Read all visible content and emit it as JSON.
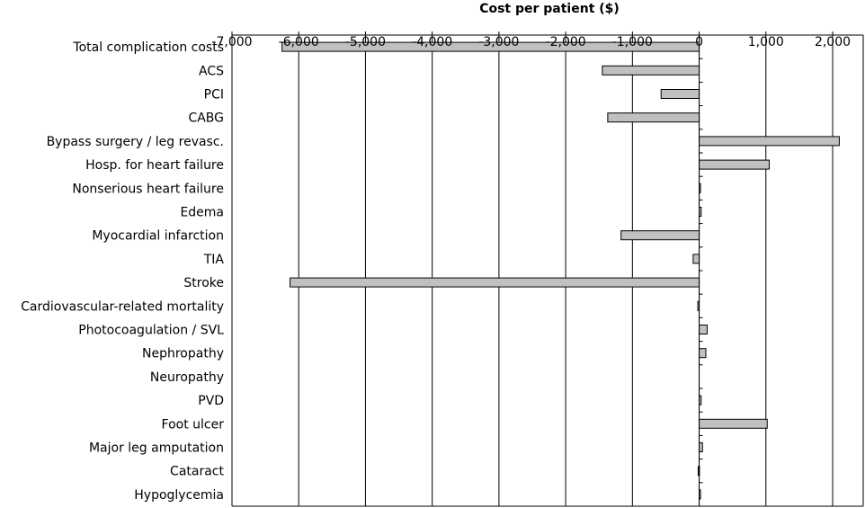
{
  "chart_data": {
    "type": "bar",
    "orientation": "horizontal",
    "title": "",
    "xlabel": "Cost per patient ($)",
    "ylabel": "",
    "xlim": [
      -7000,
      2500
    ],
    "x_ticks": [
      -7000,
      -6000,
      -5000,
      -4000,
      -3000,
      -2000,
      -1000,
      0,
      1000,
      2000
    ],
    "x_tick_labels": [
      "-7,000",
      "-6,000",
      "-5,000",
      "-4,000",
      "-3,000",
      "-2,000",
      "-1,000",
      "0",
      "1,000",
      "2,000"
    ],
    "x_axis_position": "top",
    "grid": "vertical",
    "categories": [
      "Total complication costs",
      "ACS",
      "PCI",
      "CABG",
      "Bypass surgery / leg revasc.",
      "Hosp. for heart failure",
      "Nonserious heart failure",
      "Edema",
      "Myocardial infarction",
      "TIA",
      "Stroke",
      "Cardiovascular-related mortality",
      "Photocoagulation / SVL",
      "Nephropathy",
      "Neuropathy",
      "PVD",
      "Foot ulcer",
      "Major leg amputation",
      "Cataract",
      "Hypoglycemia"
    ],
    "values": [
      -6250,
      -1450,
      -570,
      -1370,
      2100,
      1050,
      15,
      30,
      -1170,
      -90,
      -6130,
      -20,
      120,
      100,
      0,
      30,
      1020,
      50,
      -15,
      10
    ],
    "colors": {
      "bar_fill": "#c0c0c0",
      "bar_stroke": "#000000",
      "grid": "#000000"
    }
  }
}
